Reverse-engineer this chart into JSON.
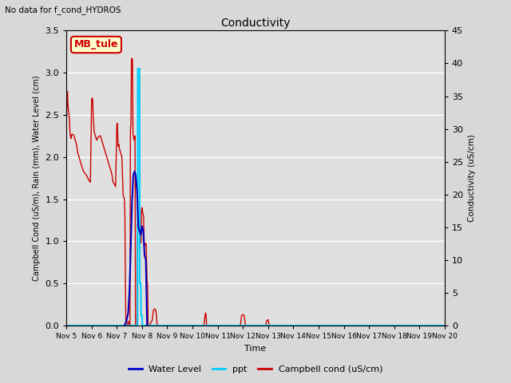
{
  "title": "Conductivity",
  "top_left_text": "No data for f_cond_HYDROS",
  "xlabel": "Time",
  "ylabel_left": "Campbell Cond (uS/m), Rain (mm), Water Level (cm)",
  "ylabel_right": "Conductivity (uS/cm)",
  "ylim_left": [
    0,
    3.5
  ],
  "ylim_right": [
    0,
    45
  ],
  "yticks_left": [
    0.0,
    0.5,
    1.0,
    1.5,
    2.0,
    2.5,
    3.0,
    3.5
  ],
  "yticks_right": [
    0,
    5,
    10,
    15,
    20,
    25,
    30,
    35,
    40,
    45
  ],
  "fig_facecolor": "#d8d8d8",
  "plot_facecolor": "#e0e0e0",
  "grid_color": "white",
  "annotation_box": {
    "text": "MB_tule",
    "facecolor": "#ffffcc",
    "edgecolor": "#cc0000",
    "fontsize": 9,
    "fontweight": "bold",
    "color": "#cc0000"
  },
  "legend": [
    {
      "label": "Water Level",
      "color": "#0000cc",
      "lw": 2
    },
    {
      "label": "ppt",
      "color": "#00ccff",
      "lw": 2
    },
    {
      "label": "Campbell cond (uS/cm)",
      "color": "#cc0000",
      "lw": 2
    }
  ],
  "water_level": {
    "color": "#0000bb",
    "lw": 1.5,
    "data": [
      [
        7.3,
        0.0
      ],
      [
        7.35,
        0.03
      ],
      [
        7.4,
        0.08
      ],
      [
        7.45,
        0.15
      ],
      [
        7.5,
        0.4
      ],
      [
        7.55,
        0.9
      ],
      [
        7.6,
        1.45
      ],
      [
        7.65,
        1.78
      ],
      [
        7.7,
        1.83
      ],
      [
        7.75,
        1.78
      ],
      [
        7.8,
        1.6
      ],
      [
        7.85,
        1.18
      ],
      [
        7.9,
        1.12
      ],
      [
        7.95,
        1.08
      ],
      [
        8.0,
        1.18
      ],
      [
        8.05,
        1.12
      ],
      [
        8.1,
        0.83
      ],
      [
        8.15,
        0.78
      ],
      [
        8.2,
        0.0
      ]
    ]
  },
  "ppt": {
    "color": "#00ccff",
    "lw": 1.5,
    "data": [
      [
        5.0,
        0.0
      ],
      [
        7.82,
        0.0
      ],
      [
        7.83,
        3.05
      ],
      [
        7.84,
        3.05
      ],
      [
        7.85,
        3.05
      ],
      [
        7.86,
        3.05
      ],
      [
        7.87,
        3.05
      ],
      [
        7.88,
        3.05
      ],
      [
        7.89,
        3.05
      ],
      [
        7.9,
        3.05
      ],
      [
        7.91,
        0.5
      ],
      [
        7.92,
        0.5
      ],
      [
        7.93,
        0.5
      ],
      [
        7.94,
        0.5
      ],
      [
        7.95,
        0.5
      ],
      [
        7.96,
        0.12
      ],
      [
        7.97,
        0.12
      ],
      [
        7.98,
        0.12
      ],
      [
        7.99,
        0.12
      ],
      [
        8.0,
        0.12
      ],
      [
        8.01,
        0.0
      ],
      [
        20.0,
        0.0
      ]
    ]
  },
  "campbell": {
    "color": "#cc0000",
    "lw": 1.0,
    "data": [
      [
        5.0,
        2.42
      ],
      [
        5.02,
        2.6
      ],
      [
        5.04,
        2.78
      ],
      [
        5.06,
        2.62
      ],
      [
        5.08,
        2.55
      ],
      [
        5.1,
        2.5
      ],
      [
        5.12,
        2.45
      ],
      [
        5.14,
        2.3
      ],
      [
        5.16,
        2.25
      ],
      [
        5.18,
        2.22
      ],
      [
        5.2,
        2.26
      ],
      [
        5.22,
        2.27
      ],
      [
        5.25,
        2.27
      ],
      [
        5.3,
        2.25
      ],
      [
        5.35,
        2.2
      ],
      [
        5.4,
        2.15
      ],
      [
        5.45,
        2.05
      ],
      [
        5.5,
        2.0
      ],
      [
        5.55,
        1.95
      ],
      [
        5.6,
        1.9
      ],
      [
        5.65,
        1.85
      ],
      [
        5.7,
        1.82
      ],
      [
        5.75,
        1.8
      ],
      [
        5.8,
        1.78
      ],
      [
        5.85,
        1.75
      ],
      [
        5.9,
        1.72
      ],
      [
        5.95,
        1.7
      ],
      [
        6.0,
        2.68
      ],
      [
        6.02,
        2.7
      ],
      [
        6.04,
        2.69
      ],
      [
        6.06,
        2.5
      ],
      [
        6.1,
        2.3
      ],
      [
        6.15,
        2.25
      ],
      [
        6.2,
        2.2
      ],
      [
        6.25,
        2.23
      ],
      [
        6.3,
        2.25
      ],
      [
        6.35,
        2.25
      ],
      [
        6.4,
        2.2
      ],
      [
        6.45,
        2.15
      ],
      [
        6.5,
        2.1
      ],
      [
        6.55,
        2.05
      ],
      [
        6.6,
        2.0
      ],
      [
        6.65,
        1.95
      ],
      [
        6.7,
        1.9
      ],
      [
        6.75,
        1.85
      ],
      [
        6.8,
        1.8
      ],
      [
        6.85,
        1.7
      ],
      [
        6.9,
        1.68
      ],
      [
        6.95,
        1.65
      ],
      [
        7.0,
        2.38
      ],
      [
        7.02,
        2.4
      ],
      [
        7.05,
        2.13
      ],
      [
        7.08,
        2.15
      ],
      [
        7.1,
        2.1
      ],
      [
        7.15,
        2.05
      ],
      [
        7.2,
        2.0
      ],
      [
        7.25,
        1.55
      ],
      [
        7.3,
        1.5
      ],
      [
        7.32,
        1.3
      ],
      [
        7.34,
        0.5
      ],
      [
        7.36,
        0.0
      ],
      [
        7.38,
        0.0
      ],
      [
        7.4,
        0.0
      ],
      [
        7.42,
        0.0
      ],
      [
        7.44,
        0.05
      ],
      [
        7.46,
        0.05
      ],
      [
        7.48,
        0.0
      ],
      [
        7.5,
        0.0
      ],
      [
        7.52,
        0.0
      ],
      [
        7.54,
        2.35
      ],
      [
        7.56,
        2.38
      ],
      [
        7.58,
        3.17
      ],
      [
        7.6,
        3.17
      ],
      [
        7.62,
        3.15
      ],
      [
        7.64,
        2.27
      ],
      [
        7.66,
        2.25
      ],
      [
        7.68,
        2.2
      ],
      [
        7.7,
        2.23
      ],
      [
        7.72,
        2.25
      ],
      [
        7.74,
        0.0
      ],
      [
        7.76,
        0.0
      ],
      [
        7.78,
        0.0
      ],
      [
        7.8,
        0.0
      ],
      [
        7.82,
        1.2
      ],
      [
        7.84,
        1.18
      ],
      [
        7.86,
        1.15
      ],
      [
        7.88,
        1.22
      ],
      [
        7.9,
        1.18
      ],
      [
        7.92,
        1.05
      ],
      [
        7.94,
        1.0
      ],
      [
        7.96,
        0.98
      ],
      [
        7.98,
        1.38
      ],
      [
        8.0,
        1.4
      ],
      [
        8.02,
        1.35
      ],
      [
        8.04,
        1.32
      ],
      [
        8.06,
        1.3
      ],
      [
        8.08,
        1.0
      ],
      [
        8.1,
        0.98
      ],
      [
        8.12,
        0.95
      ],
      [
        8.14,
        0.97
      ],
      [
        8.16,
        0.97
      ],
      [
        8.2,
        0.52
      ],
      [
        8.22,
        0.5
      ],
      [
        8.24,
        0.0
      ],
      [
        8.26,
        0.0
      ],
      [
        8.28,
        0.0
      ],
      [
        8.4,
        0.06
      ],
      [
        8.45,
        0.18
      ],
      [
        8.5,
        0.2
      ],
      [
        8.55,
        0.18
      ],
      [
        8.6,
        0.0
      ],
      [
        9.0,
        0.0
      ],
      [
        9.5,
        0.0
      ],
      [
        10.45,
        0.0
      ],
      [
        10.5,
        0.12
      ],
      [
        10.52,
        0.15
      ],
      [
        10.54,
        0.13
      ],
      [
        10.56,
        0.0
      ],
      [
        11.9,
        0.0
      ],
      [
        11.95,
        0.12
      ],
      [
        12.0,
        0.13
      ],
      [
        12.05,
        0.12
      ],
      [
        12.1,
        0.0
      ],
      [
        12.9,
        0.0
      ],
      [
        12.95,
        0.06
      ],
      [
        13.0,
        0.07
      ],
      [
        13.05,
        0.0
      ],
      [
        13.5,
        0.0
      ],
      [
        14.0,
        0.0
      ],
      [
        15.0,
        0.0
      ],
      [
        16.0,
        0.0
      ],
      [
        17.0,
        0.0
      ],
      [
        18.0,
        0.0
      ],
      [
        19.0,
        0.0
      ],
      [
        20.0,
        0.0
      ]
    ]
  }
}
